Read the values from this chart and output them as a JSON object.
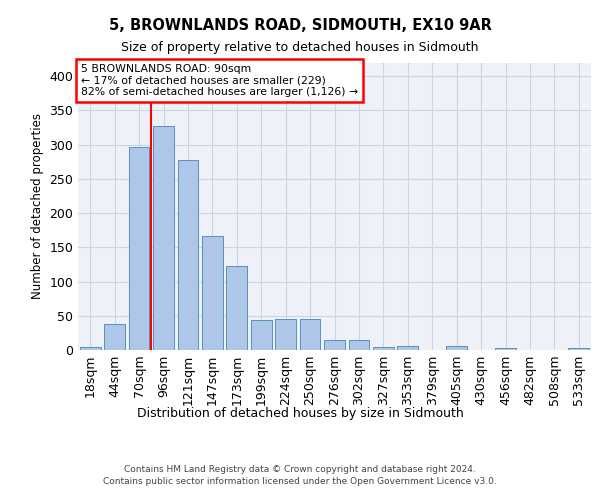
{
  "title": "5, BROWNLANDS ROAD, SIDMOUTH, EX10 9AR",
  "subtitle": "Size of property relative to detached houses in Sidmouth",
  "xlabel_bottom": "Distribution of detached houses by size in Sidmouth",
  "ylabel": "Number of detached properties",
  "bin_labels": [
    "18sqm",
    "44sqm",
    "70sqm",
    "96sqm",
    "121sqm",
    "147sqm",
    "173sqm",
    "199sqm",
    "224sqm",
    "250sqm",
    "276sqm",
    "302sqm",
    "327sqm",
    "353sqm",
    "379sqm",
    "405sqm",
    "430sqm",
    "456sqm",
    "482sqm",
    "508sqm",
    "533sqm"
  ],
  "bar_values": [
    4,
    38,
    297,
    327,
    278,
    167,
    123,
    44,
    46,
    46,
    15,
    15,
    5,
    6,
    0,
    6,
    0,
    3,
    0,
    0,
    3
  ],
  "bar_color": "#aec6e8",
  "bar_edgecolor": "#5a8fc0",
  "grid_color": "#c8d4e8",
  "background_color": "#eef2f8",
  "annotation_text_line1": "5 BROWNLANDS ROAD: 90sqm",
  "annotation_text_line2": "← 17% of detached houses are smaller (229)",
  "annotation_text_line3": "82% of semi-detached houses are larger (1,126) →",
  "vline_color": "red",
  "footer_line1": "Contains HM Land Registry data © Crown copyright and database right 2024.",
  "footer_line2": "Contains public sector information licensed under the Open Government Licence v3.0.",
  "ylim": [
    0,
    420
  ],
  "yticks": [
    0,
    50,
    100,
    150,
    200,
    250,
    300,
    350,
    400
  ]
}
